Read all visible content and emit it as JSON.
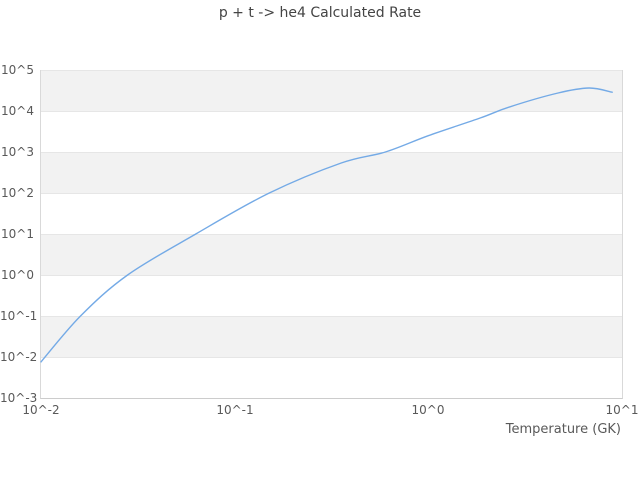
{
  "title": "p + t -> he4 Calculated Rate",
  "colors": {
    "line": "#74aae6",
    "band": "#f2f2f2",
    "grid": "#e6e6e6",
    "axis_line": "#cccccc",
    "plot_border": "#d9d9d9",
    "title_text": "#444444",
    "tick_text": "#595959",
    "background": "#ffffff"
  },
  "chart_data": {
    "type": "line",
    "title": "p + t -> he4 Calculated Rate",
    "xlabel": "Temperature (GK)",
    "ylabel": "",
    "x_scale": "log",
    "y_scale": "log",
    "xlim": [
      0.01,
      10
    ],
    "ylim": [
      0.001,
      100000
    ],
    "x_tick_labels": [
      "10^-2",
      "10^-1",
      "10^0",
      "10^1"
    ],
    "y_tick_labels": [
      "10^5",
      "10^4",
      "10^3",
      "10^2",
      "10^1",
      "10^0",
      "10^-1",
      "10^-2",
      "10^-3"
    ],
    "grid": true,
    "alternating_horizontal_bands": true,
    "legend": "none",
    "series": [
      {
        "name": "p + t -> he4 calculated rate",
        "points": [
          [
            0.01,
            0.0076
          ],
          [
            0.016,
            0.1
          ],
          [
            0.028,
            1.0
          ],
          [
            0.063,
            10
          ],
          [
            0.151,
            100
          ],
          [
            0.355,
            540
          ],
          [
            0.6,
            1000
          ],
          [
            1.0,
            2500
          ],
          [
            1.86,
            6800
          ],
          [
            2.63,
            12600
          ],
          [
            4.68,
            27500
          ],
          [
            6.76,
            36300
          ],
          [
            8.9,
            28800
          ]
        ]
      }
    ]
  }
}
